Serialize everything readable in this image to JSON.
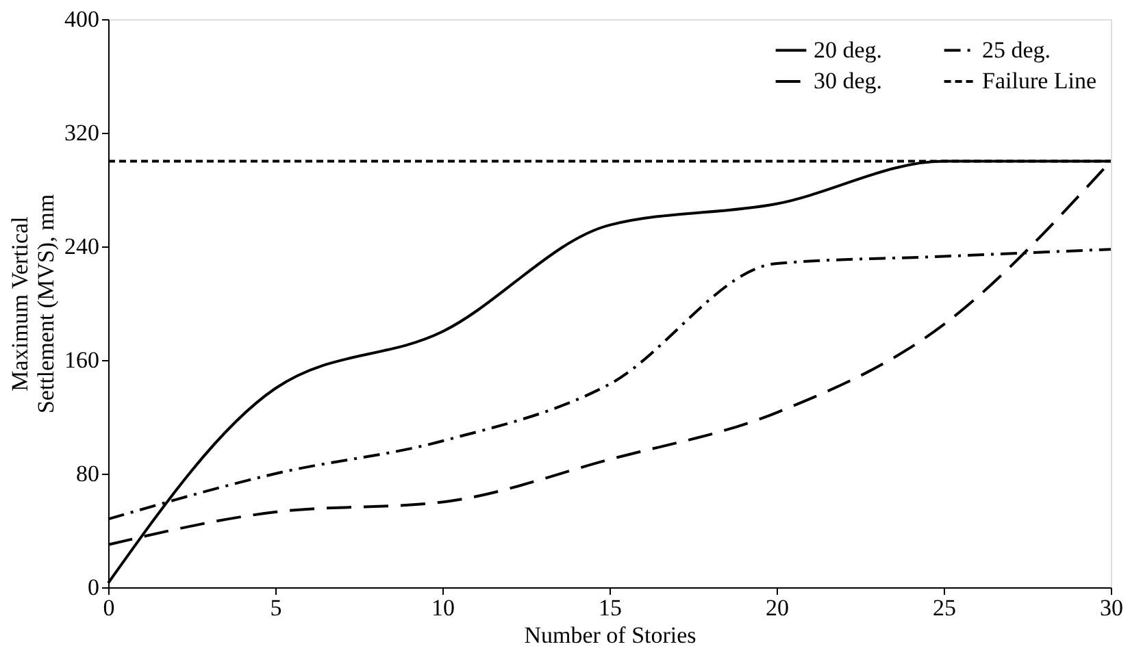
{
  "chart_data": {
    "type": "line",
    "xlabel": "Number of Stories",
    "ylabel": "Maximum Vertical Settlement (MVS), mm",
    "x": [
      0,
      5,
      10,
      15,
      20,
      25,
      30
    ],
    "series": [
      {
        "name": "20 deg.",
        "color": "#000000",
        "line_style": "solid",
        "values": [
          3,
          140,
          180,
          255,
          270,
          300,
          300
        ]
      },
      {
        "name": "25 deg.",
        "color": "#000000",
        "line_style": "dashdot",
        "values": [
          48,
          80,
          103,
          143,
          228,
          233,
          238
        ]
      },
      {
        "name": "30 deg.",
        "color": "#000000",
        "line_style": "longdash",
        "values": [
          30,
          53,
          60,
          90,
          123,
          185,
          300
        ]
      },
      {
        "name": "Failure Line",
        "color": "#000000",
        "line_style": "dashed",
        "x": [
          0,
          30
        ],
        "values": [
          300,
          300
        ]
      }
    ],
    "xlim": [
      0,
      30
    ],
    "xticks": [
      0,
      5,
      10,
      15,
      20,
      25,
      30
    ],
    "ylim": [
      0,
      400
    ],
    "yticks": [
      0,
      80,
      160,
      240,
      320,
      400
    ],
    "grid": false,
    "legend": "top right",
    "marker": "none"
  }
}
